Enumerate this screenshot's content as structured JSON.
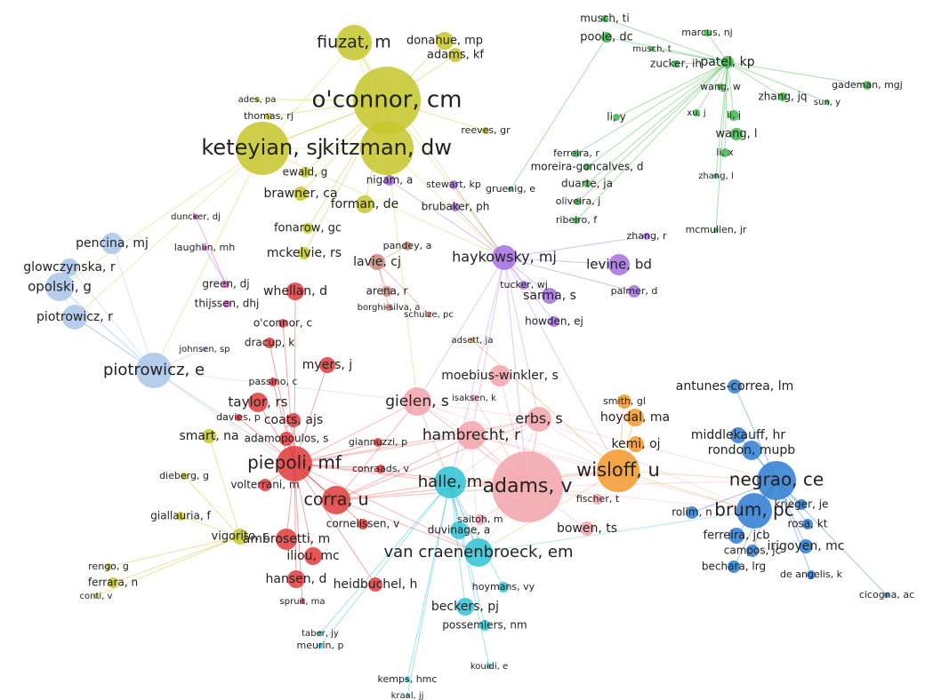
{
  "nodes": [
    {
      "label": "o'connor, cm",
      "color": "#c6c62a"
    },
    {
      "label": "keteyian, sj",
      "color": "#c6c62a"
    },
    {
      "label": "kitzman, dw",
      "color": "#c6c62a"
    },
    {
      "label": "fiuzat, m",
      "color": "#c6c62a"
    },
    {
      "label": "donahue, mp",
      "color": "#c6c62a"
    },
    {
      "label": "adams, kf",
      "color": "#c6c62a"
    },
    {
      "label": "ades, pa",
      "color": "#c6c62a"
    },
    {
      "label": "thomas, rj",
      "color": "#c6c62a"
    },
    {
      "label": "ewald, g",
      "color": "#c6c62a"
    },
    {
      "label": "brawner, ca",
      "color": "#c6c62a"
    },
    {
      "label": "forman, de",
      "color": "#c6c62a"
    },
    {
      "label": "fonarow, gc",
      "color": "#c6c62a"
    },
    {
      "label": "mckelvie, rs",
      "color": "#c6c62a"
    },
    {
      "label": "reeves, gr",
      "color": "#c6c62a"
    },
    {
      "label": "smart, na",
      "color": "#c6c62a"
    },
    {
      "label": "dieberg, g",
      "color": "#c6c62a"
    },
    {
      "label": "giallauria, f",
      "color": "#c6c62a"
    },
    {
      "label": "rengo, g",
      "color": "#c6c62a"
    },
    {
      "label": "ferrara, n",
      "color": "#c6c62a"
    },
    {
      "label": "conti, v",
      "color": "#c6c62a"
    },
    {
      "label": "vigorito, c",
      "color": "#c6c62a"
    },
    {
      "label": "musch, ti",
      "color": "#3db84a"
    },
    {
      "label": "poole, dc",
      "color": "#3db84a"
    },
    {
      "label": "musch, t",
      "color": "#3db84a"
    },
    {
      "label": "marcus, nj",
      "color": "#3db84a"
    },
    {
      "label": "patel, kp",
      "color": "#3db84a"
    },
    {
      "label": "zucker, ih",
      "color": "#3db84a"
    },
    {
      "label": "wang, w",
      "color": "#3db84a"
    },
    {
      "label": "zhang, jq",
      "color": "#3db84a"
    },
    {
      "label": "gademan, mgj",
      "color": "#3db84a"
    },
    {
      "label": "sun, y",
      "color": "#3db84a"
    },
    {
      "label": "li, y",
      "color": "#3db84a"
    },
    {
      "label": "xu, j",
      "color": "#3db84a"
    },
    {
      "label": "li, j",
      "color": "#3db84a"
    },
    {
      "label": "wang, l",
      "color": "#3db84a"
    },
    {
      "label": "li, x",
      "color": "#3db84a"
    },
    {
      "label": "zhang, l",
      "color": "#3db84a"
    },
    {
      "label": "ferreira, r",
      "color": "#3db84a"
    },
    {
      "label": "moreira-goncalves, d",
      "color": "#3db84a"
    },
    {
      "label": "duarte, ja",
      "color": "#3db84a"
    },
    {
      "label": "oliveira, j",
      "color": "#3db84a"
    },
    {
      "label": "ribeiro, f",
      "color": "#3db84a"
    },
    {
      "label": "gruenig, e",
      "color": "#3db84a"
    },
    {
      "label": "mcmullen, jr",
      "color": "#3db84a"
    },
    {
      "label": "nigam, a",
      "color": "#a46ee0"
    },
    {
      "label": "stewart, kp",
      "color": "#a46ee0"
    },
    {
      "label": "brubaker, ph",
      "color": "#a46ee0"
    },
    {
      "label": "haykowsky, mj",
      "color": "#a46ee0"
    },
    {
      "label": "levine, bd",
      "color": "#a46ee0"
    },
    {
      "label": "zhang, r",
      "color": "#a46ee0"
    },
    {
      "label": "tucker, wj",
      "color": "#a46ee0"
    },
    {
      "label": "sarma, s",
      "color": "#a46ee0"
    },
    {
      "label": "palmer, d",
      "color": "#a46ee0"
    },
    {
      "label": "howden, ej",
      "color": "#a46ee0"
    },
    {
      "label": "pandey, a",
      "color": "#c8857a"
    },
    {
      "label": "lavie, cj",
      "color": "#c8857a"
    },
    {
      "label": "arena, r",
      "color": "#c8857a"
    },
    {
      "label": "borghi-silva, a",
      "color": "#c8857a"
    },
    {
      "label": "schulze, pc",
      "color": "#c8857a"
    },
    {
      "label": "duncker, dj",
      "color": "#e051cc"
    },
    {
      "label": "laughlin, mh",
      "color": "#e051cc"
    },
    {
      "label": "green, dj",
      "color": "#e051cc"
    },
    {
      "label": "thijssen, dhj",
      "color": "#e051cc"
    },
    {
      "label": "pencina, mj",
      "color": "#a9c4e9"
    },
    {
      "label": "glowczynska, r",
      "color": "#a9c4e9"
    },
    {
      "label": "opolski, g",
      "color": "#a9c4e9"
    },
    {
      "label": "piotrowicz, r",
      "color": "#a9c4e9"
    },
    {
      "label": "piotrowicz, e",
      "color": "#a9c4e9"
    },
    {
      "label": "johnsen, sp",
      "color": "#a9c4e9"
    },
    {
      "label": "whellan, d",
      "color": "#e0393b"
    },
    {
      "label": "o'connor, c",
      "color": "#e0393b"
    },
    {
      "label": "dracup, k",
      "color": "#e0393b"
    },
    {
      "label": "myers, j",
      "color": "#e0393b"
    },
    {
      "label": "passino, c",
      "color": "#e0393b"
    },
    {
      "label": "taylor, rs",
      "color": "#e0393b"
    },
    {
      "label": "coats, ajs",
      "color": "#e0393b"
    },
    {
      "label": "davies, p",
      "color": "#e0393b"
    },
    {
      "label": "adamopoulos, s",
      "color": "#e0393b"
    },
    {
      "label": "giannuzzi, p",
      "color": "#e0393b"
    },
    {
      "label": "piepoli, mf",
      "color": "#e0393b"
    },
    {
      "label": "conraads, v",
      "color": "#e0393b"
    },
    {
      "label": "volterrani, m",
      "color": "#e0393b"
    },
    {
      "label": "corra, u",
      "color": "#e0393b"
    },
    {
      "label": "cornelissen, v",
      "color": "#e0393b"
    },
    {
      "label": "ambrosetti, m",
      "color": "#e0393b"
    },
    {
      "label": "iliou, mc",
      "color": "#e0393b"
    },
    {
      "label": "hansen, d",
      "color": "#e0393b"
    },
    {
      "label": "spruit, ma",
      "color": "#e0393b"
    },
    {
      "label": "heidbuchel, h",
      "color": "#e0393b"
    },
    {
      "label": "moebius-winkler, s",
      "color": "#f2a5ab"
    },
    {
      "label": "isaksen, k",
      "color": "#f2a5ab"
    },
    {
      "label": "gielen, s",
      "color": "#f2a5ab"
    },
    {
      "label": "erbs, s",
      "color": "#f2a5ab"
    },
    {
      "label": "hambrecht, r",
      "color": "#f2a5ab"
    },
    {
      "label": "adams, v",
      "color": "#f2a5ab"
    },
    {
      "label": "bowen, ts",
      "color": "#f2a5ab"
    },
    {
      "label": "fischer, t",
      "color": "#f2a5ab"
    },
    {
      "label": "saitoh, m",
      "color": "#f2a5ab"
    },
    {
      "label": "adsett, ja",
      "color": "#f3982c"
    },
    {
      "label": "smith, gl",
      "color": "#f3982c"
    },
    {
      "label": "hoydal, ma",
      "color": "#f3982c"
    },
    {
      "label": "kemi, oj",
      "color": "#f3982c"
    },
    {
      "label": "wisloff, u",
      "color": "#f3982c"
    },
    {
      "label": "halle, m",
      "color": "#2ec3d3"
    },
    {
      "label": "duvinage, a",
      "color": "#2ec3d3"
    },
    {
      "label": "van craenenbroeck, em",
      "color": "#2ec3d3"
    },
    {
      "label": "hoymans, vy",
      "color": "#2ec3d3"
    },
    {
      "label": "beckers, pj",
      "color": "#2ec3d3"
    },
    {
      "label": "possemiers, nm",
      "color": "#2ec3d3"
    },
    {
      "label": "taber, jy",
      "color": "#2ec3d3"
    },
    {
      "label": "meurin, p",
      "color": "#2ec3d3"
    },
    {
      "label": "kouidi, e",
      "color": "#2ec3d3"
    },
    {
      "label": "kemps, hmc",
      "color": "#2ec3d3"
    },
    {
      "label": "kraal, jj",
      "color": "#2ec3d3"
    },
    {
      "label": "antunes-correa, lm",
      "color": "#2d7dd2"
    },
    {
      "label": "middlekauff, hr",
      "color": "#2d7dd2"
    },
    {
      "label": "rondon, mupb",
      "color": "#2d7dd2"
    },
    {
      "label": "negrao, ce",
      "color": "#2d7dd2"
    },
    {
      "label": "brum, pc",
      "color": "#2d7dd2"
    },
    {
      "label": "rolim, n",
      "color": "#2d7dd2"
    },
    {
      "label": "krieger, je",
      "color": "#2d7dd2"
    },
    {
      "label": "ferreira, jcb",
      "color": "#2d7dd2"
    },
    {
      "label": "rosa, kt",
      "color": "#2d7dd2"
    },
    {
      "label": "campos, jc",
      "color": "#2d7dd2"
    },
    {
      "label": "irigoyen, mc",
      "color": "#2d7dd2"
    },
    {
      "label": "bechara, lrg",
      "color": "#2d7dd2"
    },
    {
      "label": "de angelis, k",
      "color": "#2d7dd2"
    },
    {
      "label": "cicogna, ac",
      "color": "#2d7dd2"
    }
  ]
}
